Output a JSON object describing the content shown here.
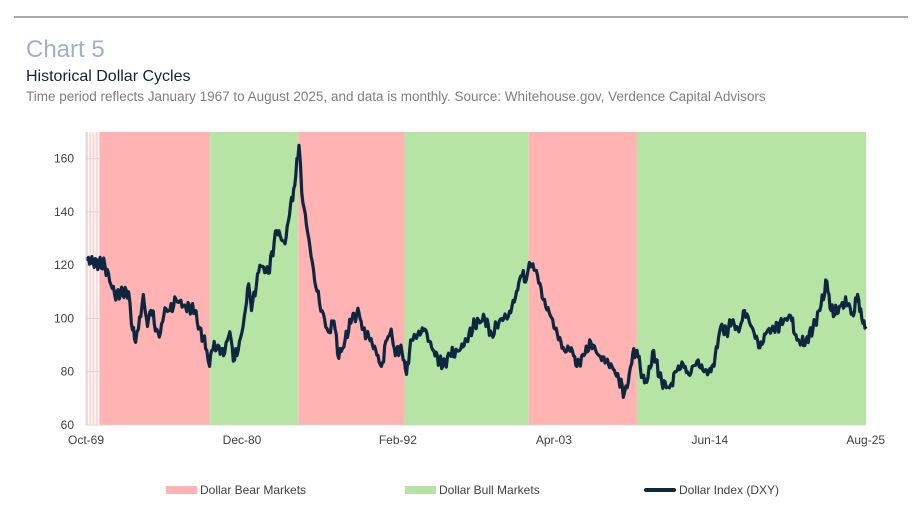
{
  "header": {
    "chart_label": "Chart 5",
    "title": "Historical Dollar Cycles",
    "description": "Time period reflects January 1967 to August 2025, and data is monthly. Source: Whitehouse.gov, Verdence Capital Advisors"
  },
  "colors": {
    "bear": "#ffb3b3",
    "bull": "#b5e4a4",
    "line": "#0f2640",
    "grid": "#f0c8c8"
  },
  "chart_data": {
    "type": "line",
    "title": "Historical Dollar Cycles",
    "xlabel": "",
    "ylabel": "",
    "xlim": [
      1969.75,
      2025.6
    ],
    "ylim": [
      60,
      170
    ],
    "yticks": [
      60,
      80,
      100,
      120,
      140,
      160
    ],
    "xticks": [
      {
        "x": 1969.75,
        "label": "Oct-69"
      },
      {
        "x": 1980.92,
        "label": "Dec-80"
      },
      {
        "x": 1992.08,
        "label": "Feb-92"
      },
      {
        "x": 2003.25,
        "label": "Apr-03"
      },
      {
        "x": 2014.42,
        "label": "Jun-14"
      },
      {
        "x": 2025.58,
        "label": "Aug-25"
      }
    ],
    "regions": [
      {
        "type": "bear",
        "start": 1970.75,
        "end": 1978.6
      },
      {
        "type": "bull",
        "start": 1978.6,
        "end": 1984.95
      },
      {
        "type": "bear",
        "start": 1984.95,
        "end": 1992.55
      },
      {
        "type": "bull",
        "start": 1992.55,
        "end": 2001.45
      },
      {
        "type": "bear",
        "start": 2001.45,
        "end": 2009.2
      },
      {
        "type": "bull",
        "start": 2009.2,
        "end": 2025.6
      }
    ],
    "legend": [
      {
        "label": "Dollar Bear Markets",
        "kind": "bear"
      },
      {
        "label": "Dollar Bull Markets",
        "kind": "bull"
      },
      {
        "label": "Dollar Index (DXY)",
        "kind": "line"
      }
    ],
    "legend_position": "bottom",
    "series": [
      {
        "name": "Dollar Index (DXY)",
        "x": [
          1969.75,
          1971.1,
          1971.8,
          1972.8,
          1973.0,
          1973.3,
          1973.5,
          1973.85,
          1974.15,
          1974.4,
          1974.8,
          1975.0,
          1975.4,
          1975.75,
          1976.2,
          1976.8,
          1977.55,
          1977.8,
          1978.15,
          1978.4,
          1978.6,
          1978.75,
          1979.2,
          1979.6,
          1980.05,
          1980.3,
          1980.65,
          1981.0,
          1981.4,
          1981.6,
          1982.2,
          1982.8,
          1983.4,
          1984.0,
          1984.4,
          1984.7,
          1985.0,
          1985.2,
          1985.7,
          1986.2,
          1986.65,
          1987.1,
          1987.5,
          1987.85,
          1988.3,
          1988.8,
          1989.3,
          1989.6,
          1990.0,
          1990.5,
          1990.9,
          1991.3,
          1991.6,
          1991.9,
          1992.3,
          1992.7,
          1993.0,
          1993.5,
          1994.0,
          1994.5,
          1995.3,
          1995.8,
          1996.5,
          1997.0,
          1997.6,
          1998.3,
          1998.8,
          1999.5,
          2000.0,
          2000.5,
          2000.9,
          2001.3,
          2001.5,
          2002.0,
          2002.5,
          2003.0,
          2003.5,
          2004.0,
          2004.5,
          2004.9,
          2005.4,
          2005.9,
          2006.5,
          2007.0,
          2007.5,
          2007.9,
          2008.3,
          2008.5,
          2008.9,
          2009.2,
          2009.6,
          2009.9,
          2010.4,
          2010.8,
          2011.3,
          2011.6,
          2012.0,
          2012.5,
          2012.9,
          2013.5,
          2014.0,
          2014.5,
          2014.8,
          2015.2,
          2015.6,
          2016.0,
          2016.5,
          2016.9,
          2017.5,
          2018.0,
          2018.5,
          2019.0,
          2019.7,
          2020.2,
          2020.5,
          2020.9,
          2021.3,
          2021.8,
          2022.3,
          2022.8,
          2023.1,
          2023.6,
          2023.9,
          2024.3,
          2024.7,
          2025.0,
          2025.3,
          2025.6
        ],
        "values": [
          122,
          120,
          109,
          110,
          98,
          91,
          96,
          109,
          97,
          103,
          96,
          93,
          104,
          103,
          107,
          105,
          103,
          96,
          93,
          88,
          82,
          88,
          90,
          86,
          95,
          84,
          88,
          97,
          113,
          103,
          120,
          117,
          133,
          128,
          143,
          150,
          165,
          147,
          130,
          112,
          103,
          95,
          99,
          85,
          92,
          100,
          102,
          96,
          93,
          88,
          82,
          92,
          96,
          86,
          90,
          79,
          92,
          94,
          96,
          89,
          82,
          86,
          88,
          92,
          98,
          100,
          94,
          100,
          101,
          108,
          116,
          115,
          121,
          118,
          107,
          101,
          94,
          88,
          89,
          82,
          86,
          91,
          86,
          84,
          81,
          77,
          72,
          74,
          87,
          88,
          78,
          76,
          88,
          78,
          74,
          75,
          80,
          83,
          79,
          84,
          80,
          80,
          86,
          97,
          95,
          99,
          95,
          103,
          96,
          89,
          95,
          96,
          99,
          101,
          94,
          90,
          92,
          96,
          103,
          114,
          103,
          102,
          106,
          105,
          101,
          109,
          100,
          97
        ]
      }
    ]
  }
}
